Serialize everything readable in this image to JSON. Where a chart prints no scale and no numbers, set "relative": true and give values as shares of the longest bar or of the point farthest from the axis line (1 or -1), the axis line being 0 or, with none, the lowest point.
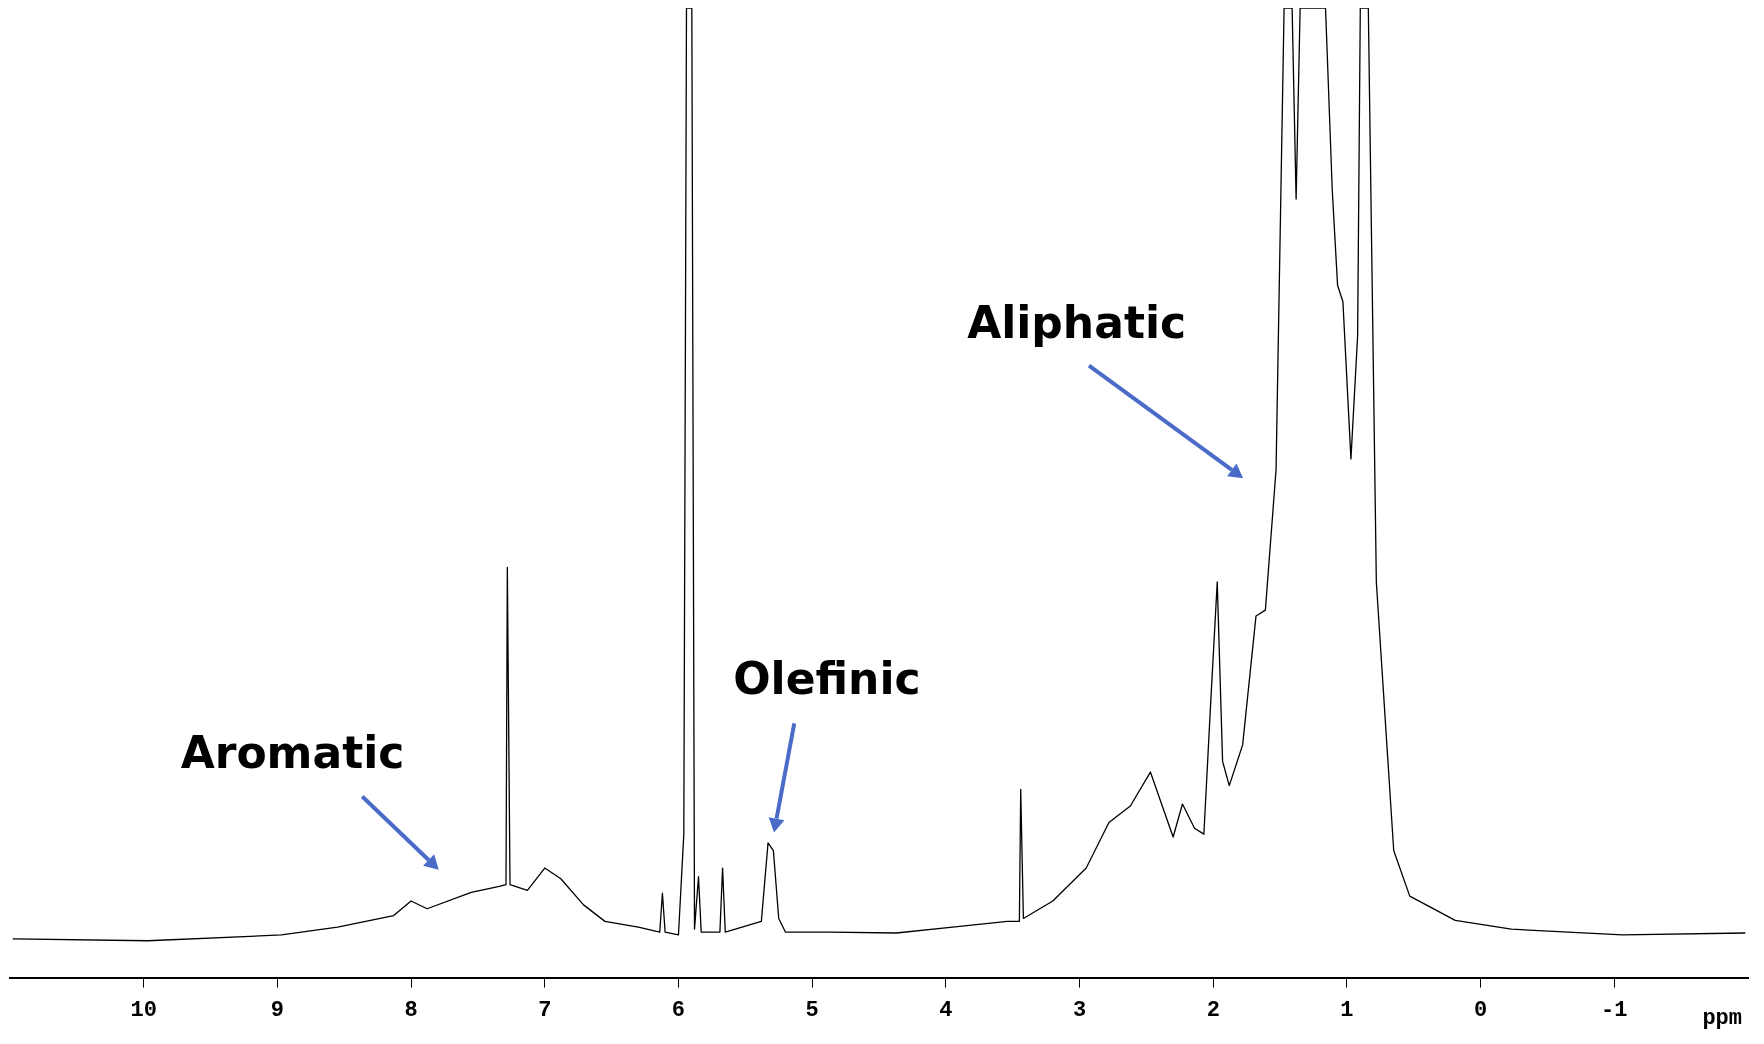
{
  "chart_data": {
    "type": "line",
    "relative": true,
    "xlabel": "ppm",
    "xlim": [
      11,
      -2
    ],
    "xticks": [
      10,
      9,
      8,
      7,
      6,
      5,
      4,
      3,
      2,
      1,
      0,
      -1
    ],
    "grid": false,
    "legend": false,
    "marker": "none",
    "line_style": "solid",
    "tick_labels": "x",
    "x": [
      10.98,
      9.97,
      8.97,
      8.55,
      8.13,
      8.0,
      7.88,
      7.55,
      7.34,
      7.29,
      7.28,
      7.26,
      7.13,
      7.0,
      6.88,
      6.71,
      6.55,
      6.3,
      6.14,
      6.12,
      6.1,
      6.0,
      5.96,
      5.94,
      5.9,
      5.88,
      5.85,
      5.83,
      5.69,
      5.67,
      5.65,
      5.38,
      5.33,
      5.29,
      5.25,
      5.2,
      4.87,
      4.37,
      3.95,
      3.54,
      3.45,
      3.44,
      3.42,
      3.2,
      2.95,
      2.78,
      2.62,
      2.47,
      2.3,
      2.23,
      2.14,
      2.07,
      2.02,
      1.97,
      1.93,
      1.88,
      1.78,
      1.68,
      1.61,
      1.53,
      1.47,
      1.41,
      1.38,
      1.35,
      1.16,
      1.11,
      1.07,
      1.03,
      0.97,
      0.92,
      0.9,
      0.84,
      0.78,
      0.65,
      0.53,
      0.19,
      -0.23,
      -1.06,
      -1.98
    ],
    "series": [
      {
        "color": "#000000",
        "values": [
          0.04,
          0.038,
          0.044,
          0.052,
          0.064,
          0.079,
          0.071,
          0.088,
          0.094,
          0.096,
          0.423,
          0.096,
          0.09,
          0.113,
          0.102,
          0.075,
          0.058,
          0.052,
          0.047,
          0.087,
          0.047,
          0.044,
          0.148,
          1,
          1,
          0.05,
          0.104,
          0.047,
          0.047,
          0.113,
          0.047,
          0.058,
          0.139,
          0.131,
          0.061,
          0.047,
          0.047,
          0.046,
          0.052,
          0.058,
          0.058,
          0.194,
          0.061,
          0.079,
          0.113,
          0.16,
          0.177,
          0.212,
          0.145,
          0.179,
          0.154,
          0.148,
          0.281,
          0.408,
          0.223,
          0.198,
          0.24,
          0.373,
          0.379,
          0.524,
          1,
          1,
          0.803,
          1,
          1,
          0.813,
          0.714,
          0.697,
          0.535,
          0.662,
          1,
          1,
          0.408,
          0.131,
          0.084,
          0.059,
          0.05,
          0.044,
          0.046
        ]
      }
    ],
    "annotations": [
      "Aromatic",
      "Olefinic",
      "Aliphatic"
    ]
  }
}
